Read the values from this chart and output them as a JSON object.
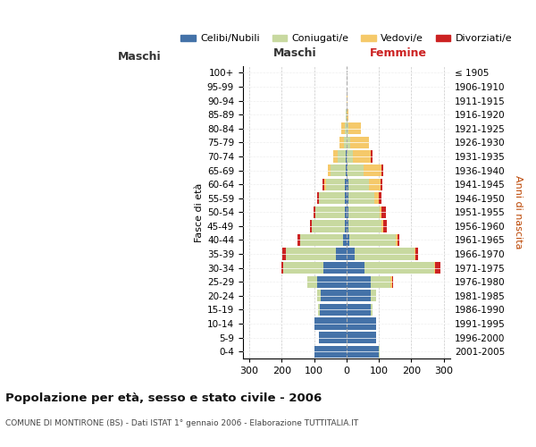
{
  "age_groups": [
    "0-4",
    "5-9",
    "10-14",
    "15-19",
    "20-24",
    "25-29",
    "30-34",
    "35-39",
    "40-44",
    "45-49",
    "50-54",
    "55-59",
    "60-64",
    "65-69",
    "70-74",
    "75-79",
    "80-84",
    "85-89",
    "90-94",
    "95-99",
    "100+"
  ],
  "birth_years": [
    "2001-2005",
    "1996-2000",
    "1991-1995",
    "1986-1990",
    "1981-1985",
    "1976-1980",
    "1971-1975",
    "1966-1970",
    "1961-1965",
    "1956-1960",
    "1951-1955",
    "1946-1950",
    "1941-1945",
    "1936-1940",
    "1931-1935",
    "1926-1930",
    "1921-1925",
    "1916-1920",
    "1911-1915",
    "1906-1910",
    "≤ 1905"
  ],
  "male_celibi": [
    100,
    85,
    100,
    82,
    80,
    90,
    70,
    32,
    12,
    6,
    5,
    4,
    4,
    3,
    2,
    0,
    0,
    0,
    0,
    0,
    0
  ],
  "male_coniugati": [
    0,
    0,
    0,
    5,
    10,
    30,
    125,
    155,
    130,
    100,
    90,
    80,
    60,
    45,
    25,
    8,
    5,
    2,
    1,
    0,
    0
  ],
  "male_vedovi": [
    0,
    0,
    0,
    0,
    0,
    0,
    0,
    0,
    0,
    0,
    0,
    0,
    5,
    10,
    15,
    15,
    10,
    0,
    0,
    0,
    0
  ],
  "male_divorziati": [
    0,
    0,
    0,
    0,
    0,
    0,
    5,
    12,
    10,
    8,
    8,
    8,
    5,
    0,
    0,
    0,
    0,
    0,
    0,
    0,
    0
  ],
  "female_nubili": [
    100,
    90,
    90,
    75,
    75,
    75,
    55,
    25,
    8,
    7,
    6,
    5,
    5,
    2,
    0,
    0,
    0,
    0,
    0,
    0,
    0
  ],
  "female_coniugate": [
    2,
    2,
    2,
    5,
    15,
    60,
    215,
    185,
    145,
    100,
    95,
    80,
    65,
    50,
    20,
    10,
    5,
    1,
    0,
    0,
    0
  ],
  "female_vedove": [
    0,
    0,
    0,
    0,
    0,
    5,
    2,
    2,
    5,
    5,
    8,
    15,
    35,
    55,
    55,
    60,
    40,
    5,
    2,
    1,
    0
  ],
  "female_divorziate": [
    0,
    0,
    0,
    0,
    0,
    5,
    18,
    10,
    5,
    12,
    12,
    8,
    5,
    5,
    5,
    0,
    0,
    0,
    0,
    0,
    0
  ],
  "color_celibi": "#4472a8",
  "color_coniugati": "#c8d9a0",
  "color_vedovi": "#f5c96a",
  "color_divorziati": "#cc2222",
  "title": "Popolazione per età, sesso e stato civile - 2006",
  "subtitle": "COMUNE DI MONTIRONE (BS) - Dati ISTAT 1° gennaio 2006 - Elaborazione TUTTITALIA.IT",
  "label_maschi": "Maschi",
  "label_femmine": "Femmine",
  "ylabel_left": "Fasce di età",
  "ylabel_right": "Anni di nascita",
  "xlim": 320,
  "background_color": "#ffffff",
  "grid_color": "#c8c8c8",
  "legend_labels": [
    "Celibi/Nubili",
    "Coniugati/e",
    "Vedovi/e",
    "Divorziati/e"
  ]
}
